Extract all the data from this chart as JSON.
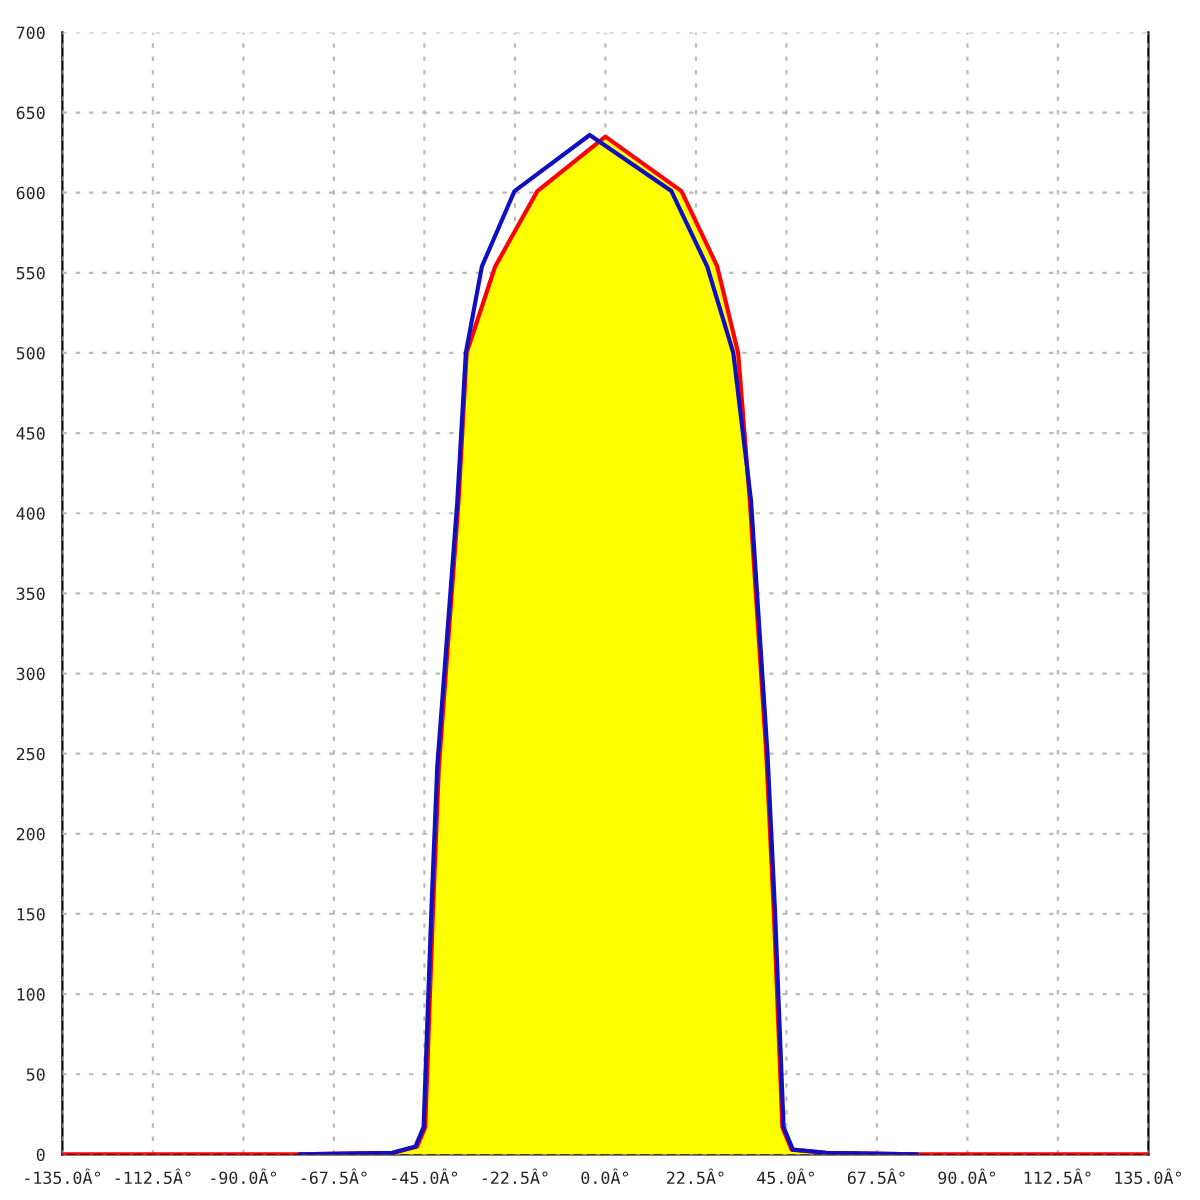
{
  "chart_data": {
    "type": "line",
    "xlim": [
      -135,
      135
    ],
    "ylim": [
      0,
      700
    ],
    "xticks": [
      {
        "value": -135,
        "label": "-135.0Â°"
      },
      {
        "value": -112.5,
        "label": "-112.5Â°"
      },
      {
        "value": -90,
        "label": "-90.0Â°"
      },
      {
        "value": -67.5,
        "label": "-67.5Â°"
      },
      {
        "value": -45,
        "label": "-45.0Â°"
      },
      {
        "value": -22.5,
        "label": "-22.5Â°"
      },
      {
        "value": 0,
        "label": "0.0Â°"
      },
      {
        "value": 22.5,
        "label": "22.5Â°"
      },
      {
        "value": 45,
        "label": "45.0Â°"
      },
      {
        "value": 67.5,
        "label": "67.5Â°"
      },
      {
        "value": 90,
        "label": "90.0Â°"
      },
      {
        "value": 112.5,
        "label": "112.5Â°"
      },
      {
        "value": 135,
        "label": "135.0Â°"
      }
    ],
    "yticks": [
      0,
      50,
      100,
      150,
      200,
      250,
      300,
      350,
      400,
      450,
      500,
      550,
      600,
      650,
      700
    ],
    "grid": true,
    "line_style": "solid",
    "series": [
      {
        "type": "area",
        "color": "#ffff00",
        "x": [
          -77,
          -52.6,
          -46.8,
          -44.8,
          -42.9,
          -41.4,
          -36.5,
          -34.5,
          -27.4,
          -16.9,
          0,
          18.9,
          27.8,
          33.0,
          35.9,
          40.0,
          41.9,
          44.0,
          46.3,
          54.6,
          76.5
        ],
        "values": [
          0,
          1,
          5,
          17,
          150,
          242,
          408,
          500,
          554,
          601,
          635,
          601,
          554,
          500,
          408,
          250,
          150,
          17,
          3,
          1,
          0
        ]
      },
      {
        "color": "#1010c0",
        "x": [
          -76,
          -53.0,
          -47.2,
          -45.2,
          -43.3,
          -41.8,
          -36.8,
          -34.7,
          -30.7,
          -22.6,
          -3.9,
          16.4,
          25.3,
          31.8,
          36.2,
          40.3,
          42.2,
          44.3,
          46.6,
          55.0,
          77.5
        ],
        "values": [
          0,
          1,
          5,
          17,
          150,
          242,
          408,
          500,
          554,
          601,
          636,
          601,
          554,
          500,
          408,
          250,
          150,
          17,
          3,
          1,
          0
        ]
      },
      {
        "color": "#ff0000",
        "x": [
          -135,
          -77,
          -52.6,
          -46.8,
          -44.8,
          -42.9,
          -41.4,
          -36.5,
          -34.5,
          -27.4,
          -16.9,
          0,
          18.9,
          27.8,
          33.0,
          35.9,
          40.0,
          41.9,
          44.0,
          46.3,
          54.6,
          76.5,
          135
        ],
        "values": [
          0,
          0,
          1,
          5,
          17,
          150,
          242,
          408,
          500,
          554,
          601,
          635,
          601,
          554,
          500,
          408,
          250,
          150,
          17,
          3,
          1,
          0,
          0
        ]
      }
    ]
  }
}
